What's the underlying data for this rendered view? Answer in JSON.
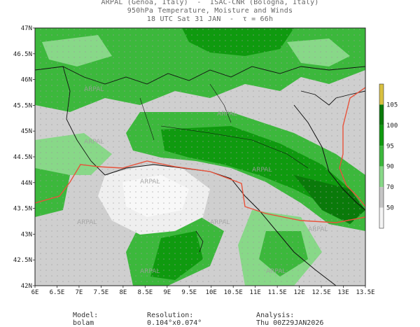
{
  "header": {
    "line1": "ARPAL (Genoa, Italy)  -  ISAC-CNR (Bologna, Italy)",
    "line2": "950hPa Temperature, Moisture and Winds",
    "line3": "18 UTC Sat 31 JAN  -  τ = 66h"
  },
  "map": {
    "lon_range": [
      6,
      13.5
    ],
    "lat_range": [
      42,
      47
    ],
    "lon_labels": [
      "6E",
      "6.5E",
      "7E",
      "7.5E",
      "8E",
      "8.5E",
      "9E",
      "9.5E",
      "10E",
      "10.5E",
      "11E",
      "11.5E",
      "12E",
      "12.5E",
      "13E",
      "13.5E"
    ],
    "lat_labels": [
      "47N",
      "46.5N",
      "46N",
      "45.5N",
      "45N",
      "44.5N",
      "44N",
      "43.5N",
      "43N",
      "42.5N",
      "42N"
    ],
    "watermark": "ARPAL",
    "colors": {
      "grey_low": "#d9d9d9",
      "grey_mid": "#c6c6c6",
      "green_light": "#88d888",
      "green_mid": "#3cb83c",
      "green_dark": "#0f9a0f",
      "green_darkest": "#0a7a0a",
      "isotherm": "#e8523a"
    }
  },
  "legend": {
    "labels": [
      "105",
      "100",
      "95",
      "90",
      "70",
      "50"
    ],
    "colors": [
      "#d8c040",
      "#0a7a0a",
      "#0f9a0f",
      "#3cb83c",
      "#88d888",
      "#c6c6c6",
      "#f4f4f4"
    ]
  },
  "footer": {
    "model_label": "Model:",
    "model_value": "bolam",
    "resolution_label": "Resolution:",
    "resolution_value": "0.104°x0.074°",
    "analysis_label": "Analysis:",
    "analysis_value": "Thu 00Z29JAN2026"
  }
}
